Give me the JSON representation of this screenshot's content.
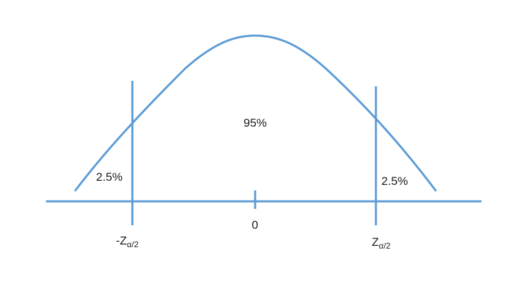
{
  "diagram": {
    "line_color": "#5b9bd5",
    "center_label": "95%",
    "left_tail_label": "2.5%",
    "right_tail_label": "2.5%",
    "origin_label": "0",
    "left_critical": {
      "prefix": "-Z",
      "subscript": "α/2"
    },
    "right_critical": {
      "prefix": "Z",
      "subscript": "α/2"
    }
  }
}
